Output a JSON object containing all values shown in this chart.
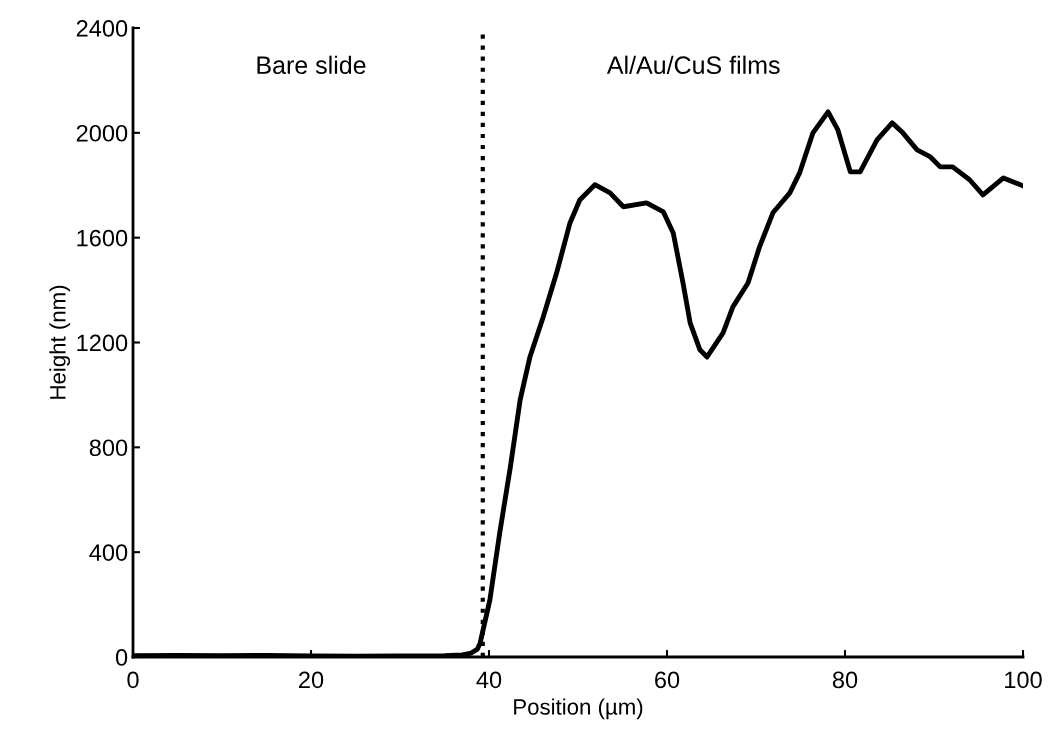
{
  "chart_data": {
    "type": "line",
    "xlabel": "Position (µm)",
    "ylabel": "Height (nm)",
    "xlim": [
      0,
      100
    ],
    "ylim": [
      0,
      2400
    ],
    "xticks": [
      0,
      20,
      40,
      60,
      80,
      100
    ],
    "yticks": [
      0,
      400,
      800,
      1200,
      1600,
      2000,
      2400
    ],
    "grid": false,
    "marker": "none",
    "line_style": "solid",
    "series": [
      {
        "color": "#000000",
        "x": [
          0,
          5,
          10,
          15,
          20,
          25,
          30,
          35,
          37,
          38,
          38.7,
          39.0,
          40.1,
          41.2,
          42.4,
          43.5,
          44.6,
          46.1,
          47.6,
          49.1,
          50.2,
          51.9,
          53.6,
          55.1,
          57.7,
          59.6,
          60.7,
          61.8,
          62.6,
          63.7,
          64.5,
          66.3,
          67.4,
          69.1,
          70.4,
          71.9,
          73.8,
          74.9,
          76.4,
          78.1,
          79.2,
          80.6,
          81.7,
          83.6,
          85.3,
          86.5,
          88.1,
          89.6,
          90.7,
          92.1,
          94.0,
          95.5,
          97.8,
          100
        ],
        "values": [
          5,
          6,
          5,
          6,
          4,
          3,
          4,
          5,
          8,
          15,
          30,
          53,
          218,
          473,
          725,
          981,
          1145,
          1298,
          1466,
          1656,
          1744,
          1802,
          1771,
          1718,
          1733,
          1698,
          1618,
          1427,
          1275,
          1172,
          1145,
          1237,
          1336,
          1427,
          1565,
          1695,
          1771,
          1847,
          2000,
          2080,
          2011,
          1851,
          1851,
          1973,
          2038,
          2000,
          1935,
          1908,
          1870,
          1870,
          1821,
          1763,
          1828,
          1798
        ]
      }
    ],
    "ref_lines": [
      {
        "axis": "x",
        "value": 39.3,
        "color": "#000000",
        "line_style": "dotted"
      }
    ],
    "annotations": [
      "Bare slide",
      "Al/Au/CuS films"
    ]
  }
}
